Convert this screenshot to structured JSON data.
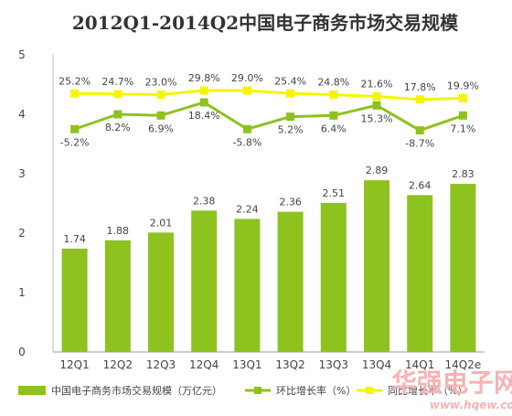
{
  "chart_data": {
    "type": "bar",
    "title": "2012Q1-2014Q2中国电子商务市场交易规模",
    "categories": [
      "12Q1",
      "12Q2",
      "12Q3",
      "12Q4",
      "13Q1",
      "13Q2",
      "13Q3",
      "13Q4",
      "14Q1",
      "14Q2e"
    ],
    "y_ticks": [
      "0",
      "1",
      "2",
      "3",
      "4",
      "5"
    ],
    "ylim": [
      0,
      5
    ],
    "series": [
      {
        "name": "中国电子商务市场交易规模（万亿元）",
        "type": "bar",
        "color": "#8dc21f",
        "values": [
          1.74,
          1.88,
          2.01,
          2.38,
          2.24,
          2.36,
          2.51,
          2.89,
          2.64,
          2.83
        ],
        "labels": [
          "1.74",
          "1.88",
          "2.01",
          "2.38",
          "2.24",
          "2.36",
          "2.51",
          "2.89",
          "2.64",
          "2.83"
        ]
      },
      {
        "name": "环比增长率（%）",
        "type": "line",
        "color": "#8dc21f",
        "values": [
          -5.2,
          8.2,
          6.9,
          18.4,
          -5.8,
          5.2,
          6.4,
          15.3,
          -8.7,
          7.1
        ],
        "labels": [
          "-5.2%",
          "8.2%",
          "6.9%",
          "18.4%",
          "-5.8%",
          "5.2%",
          "6.4%",
          "15.3%",
          "-8.7%",
          "7.1%"
        ],
        "label_pos": [
          "below",
          "below",
          "below",
          "below",
          "below",
          "below",
          "below",
          "below",
          "below",
          "below"
        ],
        "plot_positions": [
          3.75,
          4.0,
          3.98,
          4.2,
          3.75,
          3.96,
          3.98,
          4.15,
          3.73,
          3.98
        ]
      },
      {
        "name": "同比增长率（%）",
        "type": "line",
        "color": "#f5f500",
        "values": [
          25.2,
          24.7,
          23.0,
          29.8,
          29.0,
          25.4,
          24.8,
          21.6,
          17.8,
          19.9
        ],
        "labels": [
          "25.2%",
          "24.7%",
          "23.0%",
          "29.8%",
          "29.0%",
          "25.4%",
          "24.8%",
          "21.6%",
          "17.8%",
          "19.9%"
        ],
        "label_pos": [
          "above",
          "above",
          "above",
          "above",
          "above",
          "above",
          "above",
          "above",
          "above",
          "above"
        ],
        "plot_positions": [
          4.35,
          4.34,
          4.33,
          4.4,
          4.4,
          4.35,
          4.33,
          4.3,
          4.25,
          4.27
        ]
      }
    ],
    "grid": false,
    "legend_position": "bottom"
  },
  "watermark": {
    "text": "华强电子网",
    "url": "www.hqew.com"
  }
}
